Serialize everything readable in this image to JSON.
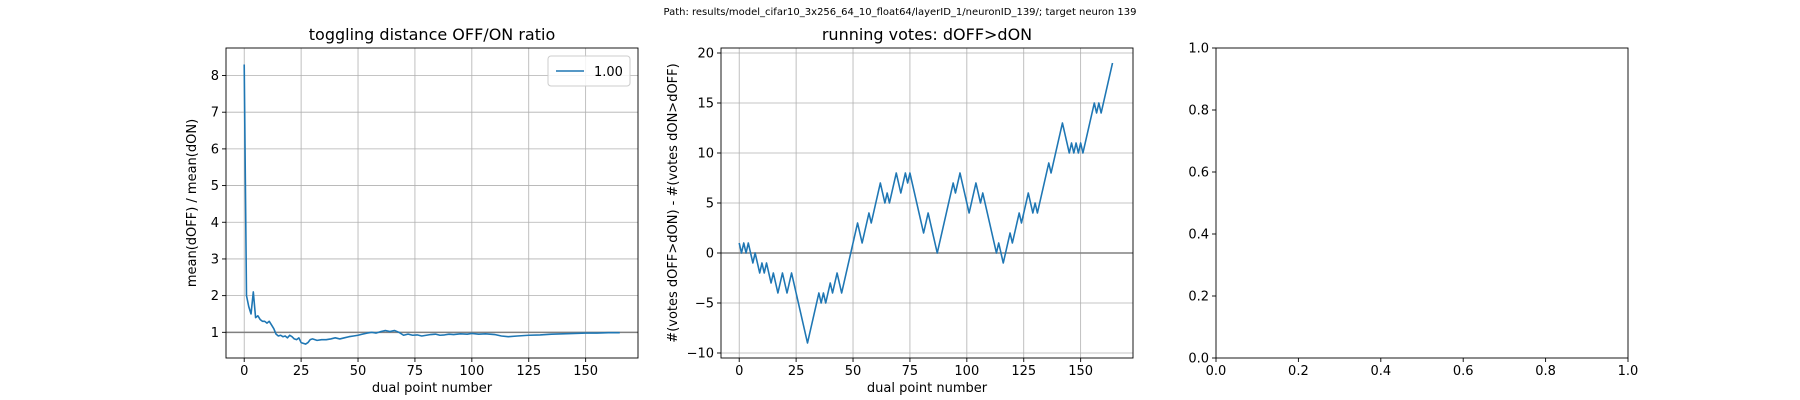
{
  "suptitle": "Path: results/model_cifar10_3x256_64_10_float64/layerID_1/neuronID_139/; target neuron 139",
  "chart_data": [
    {
      "type": "line",
      "title": "toggling distance OFF/ON ratio",
      "xlabel": "dual point number",
      "ylabel": "mean(dOFF) / mean(dON)",
      "xlim": [
        -8,
        173
      ],
      "ylim": [
        0.3,
        8.75
      ],
      "xticks": [
        0,
        25,
        50,
        75,
        100,
        125,
        150
      ],
      "yticks": [
        1,
        2,
        3,
        4,
        5,
        6,
        7,
        8
      ],
      "grid": true,
      "legend": {
        "placement": "upper right",
        "entries": [
          "1.00"
        ]
      },
      "hline": 1.0,
      "series": [
        {
          "name": "1.00",
          "color": "#1f77b4",
          "x": [
            0,
            1,
            2,
            3,
            4,
            5,
            6,
            7,
            8,
            9,
            10,
            11,
            12,
            13,
            14,
            15,
            16,
            17,
            18,
            19,
            20,
            21,
            22,
            23,
            24,
            25,
            26,
            27,
            28,
            29,
            30,
            32,
            34,
            36,
            38,
            40,
            42,
            44,
            46,
            48,
            50,
            52,
            54,
            56,
            58,
            60,
            62,
            64,
            66,
            68,
            70,
            72,
            74,
            76,
            78,
            80,
            82,
            84,
            86,
            88,
            90,
            92,
            95,
            98,
            100,
            103,
            106,
            110,
            113,
            116,
            120,
            125,
            130,
            135,
            140,
            145,
            150,
            155,
            160,
            165
          ],
          "y": [
            8.3,
            2.0,
            1.7,
            1.5,
            2.1,
            1.4,
            1.45,
            1.35,
            1.3,
            1.3,
            1.25,
            1.3,
            1.2,
            1.1,
            0.95,
            0.9,
            0.92,
            0.88,
            0.9,
            0.85,
            0.92,
            0.88,
            0.82,
            0.8,
            0.85,
            0.72,
            0.7,
            0.68,
            0.72,
            0.8,
            0.82,
            0.78,
            0.8,
            0.8,
            0.82,
            0.85,
            0.82,
            0.85,
            0.88,
            0.9,
            0.92,
            0.95,
            0.98,
            1.0,
            0.98,
            1.02,
            1.05,
            1.02,
            1.05,
            1.0,
            0.92,
            0.95,
            0.92,
            0.93,
            0.9,
            0.92,
            0.94,
            0.95,
            0.92,
            0.93,
            0.95,
            0.94,
            0.96,
            0.95,
            0.97,
            0.95,
            0.96,
            0.94,
            0.9,
            0.88,
            0.9,
            0.92,
            0.93,
            0.95,
            0.96,
            0.97,
            0.98,
            0.98,
            0.99,
            0.99
          ]
        }
      ]
    },
    {
      "type": "line",
      "title": "running votes: dOFF>dON",
      "xlabel": "dual point number",
      "ylabel": "#(votes dOFF>dON) - #(votes dON>dOFF)",
      "xlim": [
        -8,
        173
      ],
      "ylim": [
        -10.5,
        20.5
      ],
      "xticks": [
        0,
        25,
        50,
        75,
        100,
        125,
        150
      ],
      "yticks": [
        -10,
        -5,
        0,
        5,
        10,
        15,
        20
      ],
      "grid": true,
      "hline": 0,
      "series": [
        {
          "color": "#1f77b4",
          "x": [
            0,
            1,
            2,
            3,
            4,
            5,
            6,
            7,
            8,
            9,
            10,
            11,
            12,
            13,
            14,
            15,
            16,
            17,
            18,
            19,
            20,
            21,
            22,
            23,
            24,
            25,
            26,
            27,
            28,
            29,
            30,
            31,
            32,
            33,
            34,
            35,
            36,
            37,
            38,
            39,
            40,
            41,
            42,
            43,
            44,
            45,
            46,
            47,
            48,
            49,
            50,
            51,
            52,
            53,
            54,
            55,
            56,
            57,
            58,
            59,
            60,
            61,
            62,
            63,
            64,
            65,
            66,
            67,
            68,
            69,
            70,
            71,
            72,
            73,
            74,
            75,
            76,
            77,
            78,
            79,
            80,
            81,
            82,
            83,
            84,
            85,
            86,
            87,
            88,
            89,
            90,
            91,
            92,
            93,
            94,
            95,
            96,
            97,
            98,
            99,
            100,
            101,
            102,
            103,
            104,
            105,
            106,
            107,
            108,
            109,
            110,
            111,
            112,
            113,
            114,
            115,
            116,
            117,
            118,
            119,
            120,
            121,
            122,
            123,
            124,
            125,
            126,
            127,
            128,
            129,
            130,
            131,
            132,
            133,
            134,
            135,
            136,
            137,
            138,
            139,
            140,
            141,
            142,
            143,
            144,
            145,
            146,
            147,
            148,
            149,
            150,
            151,
            152,
            153,
            154,
            155,
            156,
            157,
            158,
            159,
            160,
            161,
            162,
            163,
            164
          ],
          "y": [
            1,
            0,
            1,
            0,
            1,
            0,
            -1,
            0,
            -1,
            -2,
            -1,
            -2,
            -1,
            -2,
            -3,
            -2,
            -3,
            -4,
            -3,
            -2,
            -3,
            -4,
            -3,
            -2,
            -3,
            -4,
            -5,
            -6,
            -7,
            -8,
            -9,
            -8,
            -7,
            -6,
            -5,
            -4,
            -5,
            -4,
            -5,
            -4,
            -3,
            -4,
            -3,
            -2,
            -3,
            -4,
            -3,
            -2,
            -1,
            0,
            1,
            2,
            3,
            2,
            1,
            2,
            3,
            4,
            3,
            4,
            5,
            6,
            7,
            6,
            5,
            6,
            5,
            6,
            7,
            8,
            7,
            6,
            7,
            8,
            7,
            8,
            7,
            6,
            5,
            4,
            3,
            2,
            3,
            4,
            3,
            2,
            1,
            0,
            1,
            2,
            3,
            4,
            5,
            6,
            7,
            6,
            7,
            8,
            7,
            6,
            5,
            4,
            5,
            6,
            7,
            6,
            5,
            6,
            5,
            4,
            3,
            2,
            1,
            0,
            1,
            0,
            -1,
            0,
            1,
            2,
            1,
            2,
            3,
            4,
            3,
            4,
            5,
            6,
            5,
            4,
            5,
            4,
            5,
            6,
            7,
            8,
            9,
            8,
            9,
            10,
            11,
            12,
            13,
            12,
            11,
            10,
            11,
            10,
            11,
            10,
            11,
            10,
            11,
            12,
            13,
            14,
            15,
            14,
            15,
            14,
            15,
            16,
            17,
            18,
            19
          ]
        }
      ]
    },
    {
      "type": "line",
      "title": "",
      "xlim": [
        0,
        1
      ],
      "ylim": [
        0,
        1
      ],
      "xticks": [
        0.0,
        0.2,
        0.4,
        0.6,
        0.8,
        1.0
      ],
      "yticks": [
        0.0,
        0.2,
        0.4,
        0.6,
        0.8,
        1.0
      ],
      "tick_labels": [
        "0.0",
        "0.2",
        "0.4",
        "0.6",
        "0.8",
        "1.0"
      ],
      "grid": false,
      "series": []
    }
  ]
}
